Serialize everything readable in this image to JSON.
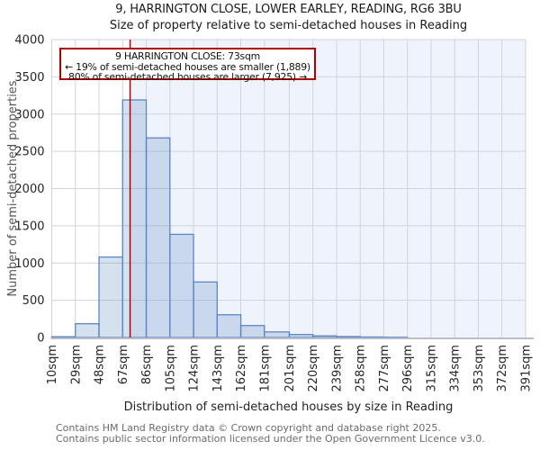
{
  "title": {
    "line1": "9, HARRINGTON CLOSE, LOWER EARLEY, READING, RG6 3BU",
    "line2": "Size of property relative to semi-detached houses in Reading"
  },
  "annotation": {
    "line1": "9 HARRINGTON CLOSE: 73sqm",
    "line2": "← 19% of semi-detached houses are smaller (1,889)",
    "line3": "80% of semi-detached houses are larger (7,925) →"
  },
  "chart_data": {
    "type": "bar",
    "histogram": true,
    "title": "Size of property relative to semi-detached houses in Reading",
    "xlabel": "Distribution of semi-detached houses by size in Reading",
    "ylabel": "Number of semi-detached properties",
    "bin_edges_sqm": [
      10,
      29,
      48,
      67,
      86,
      105,
      124,
      143,
      162,
      181,
      201,
      220,
      239,
      258,
      277,
      296,
      315,
      334,
      353,
      372,
      391
    ],
    "bin_labels": [
      "10sqm",
      "29sqm",
      "48sqm",
      "67sqm",
      "86sqm",
      "105sqm",
      "124sqm",
      "143sqm",
      "162sqm",
      "181sqm",
      "201sqm",
      "220sqm",
      "239sqm",
      "258sqm",
      "277sqm",
      "296sqm",
      "315sqm",
      "334sqm",
      "353sqm",
      "372sqm",
      "391sqm"
    ],
    "values": [
      10,
      185,
      1080,
      3190,
      2680,
      1385,
      745,
      305,
      160,
      75,
      40,
      22,
      12,
      6,
      3,
      0,
      0,
      0,
      0,
      0
    ],
    "ylim": [
      0,
      4000
    ],
    "y_ticks": [
      0,
      500,
      1000,
      1500,
      2000,
      2500,
      3000,
      3500,
      4000
    ],
    "grid": true,
    "marker_line": {
      "sqm": 73,
      "color": "#b00000"
    },
    "shaded_region": {
      "from_sqm": 73,
      "to_sqm": 391
    },
    "colors": {
      "bar_edge": "#5b87c5",
      "bar_fill_rgba": "rgba(91,135,197,0.25)",
      "grid": "#cfd3dc",
      "shade": "#eff3fc",
      "marker": "#b00000",
      "axis_line": "#b9bdc6",
      "tick_text": "#262626"
    }
  },
  "footer": {
    "line1": "Contains HM Land Registry data © Crown copyright and database right 2025.",
    "line2": "Contains public sector information licensed under the Open Government Licence v3.0."
  }
}
